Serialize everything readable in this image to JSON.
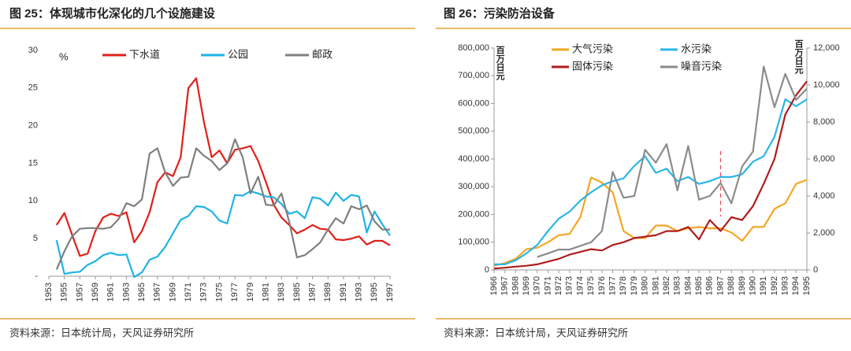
{
  "chart_data": [
    {
      "type": "line",
      "title": "图 25：体现城市化深化的几个设施建设",
      "source": "资料来源：日本统计局，天风证券研究所",
      "y_label": "%",
      "x": [
        1954,
        1955,
        1956,
        1957,
        1958,
        1959,
        1960,
        1961,
        1962,
        1963,
        1964,
        1965,
        1966,
        1967,
        1968,
        1969,
        1970,
        1971,
        1972,
        1973,
        1974,
        1975,
        1976,
        1977,
        1978,
        1979,
        1980,
        1981,
        1982,
        1983,
        1984,
        1985,
        1986,
        1987,
        1988,
        1989,
        1990,
        1991,
        1992,
        1993,
        1994,
        1995,
        1996,
        1997
      ],
      "series": [
        {
          "name": "下水道",
          "color": "#e0201b",
          "values": [
            6.8,
            8.4,
            5.5,
            2.7,
            3.0,
            6.0,
            7.8,
            8.3,
            8.0,
            8.5,
            4.5,
            6.0,
            8.5,
            12.5,
            13.8,
            13.3,
            15.8,
            25.0,
            26.3,
            20.5,
            15.8,
            16.7,
            15.0,
            16.8,
            17.0,
            17.3,
            15.3,
            12.5,
            9.5,
            7.8,
            6.8,
            5.7,
            6.2,
            6.8,
            6.3,
            6.2,
            4.9,
            4.8,
            5.0,
            5.3,
            4.2,
            4.7,
            4.7,
            4.1
          ]
        },
        {
          "name": "公园",
          "color": "#1fb3e6",
          "values": [
            4.8,
            0.3,
            0.5,
            0.6,
            1.5,
            2.0,
            2.8,
            3.1,
            2.8,
            2.9,
            -0.1,
            0.5,
            2.2,
            2.6,
            3.9,
            5.7,
            7.5,
            8.0,
            9.3,
            9.2,
            8.6,
            7.4,
            7.0,
            10.8,
            10.7,
            11.3,
            11.0,
            10.6,
            10.5,
            9.6,
            8.3,
            8.6,
            7.7,
            10.5,
            10.3,
            9.4,
            11.1,
            10.0,
            10.8,
            10.6,
            5.8,
            8.6,
            6.9,
            5.4
          ]
        },
        {
          "name": "邮政",
          "color": "#7f7f7f",
          "values": [
            0.9,
            3.3,
            5.3,
            6.3,
            6.4,
            6.4,
            6.3,
            6.5,
            7.6,
            9.7,
            9.3,
            10.2,
            16.3,
            17.0,
            13.8,
            12.0,
            13.1,
            13.2,
            17.0,
            16.0,
            15.3,
            14.1,
            15.0,
            18.2,
            15.8,
            11.0,
            13.2,
            9.5,
            9.4,
            11.0,
            7.2,
            2.5,
            2.8,
            3.6,
            4.5,
            6.2,
            7.7,
            7.0,
            9.3,
            8.9,
            9.4,
            7.3,
            6.2,
            6.2
          ]
        }
      ],
      "xlim": [
        1953,
        1997
      ],
      "xticks": [
        1953,
        1955,
        1957,
        1959,
        1961,
        1963,
        1965,
        1967,
        1969,
        1971,
        1973,
        1975,
        1977,
        1979,
        1981,
        1983,
        1985,
        1987,
        1989,
        1991,
        1993,
        1995,
        1997
      ],
      "ylim": [
        0,
        30
      ],
      "yticks": [
        {
          "value": 0,
          "label": "-"
        },
        5,
        10,
        15,
        20,
        25,
        30
      ],
      "grid": false
    },
    {
      "type": "line",
      "title": "图 26：污染防治设备",
      "source": "资料来源：日本统计局，天风证券研究所",
      "y_label": "百万日元",
      "y2_label": "百万日元",
      "x": [
        1966,
        1967,
        1968,
        1969,
        1970,
        1971,
        1972,
        1973,
        1974,
        1975,
        1976,
        1977,
        1978,
        1979,
        1980,
        1981,
        1982,
        1983,
        1984,
        1985,
        1986,
        1987,
        1988,
        1989,
        1990,
        1991,
        1992,
        1993,
        1994,
        1995
      ],
      "series": [
        {
          "name": "大气污染",
          "color": "#f5a623",
          "values": [
            15000,
            25000,
            40000,
            75000,
            80000,
            100000,
            125000,
            130000,
            190000,
            333000,
            315000,
            280000,
            140000,
            115000,
            115000,
            160000,
            160000,
            140000,
            150000,
            155000,
            150000,
            150000,
            135000,
            105000,
            155000,
            155000,
            220000,
            240000,
            310000,
            325000
          ]
        },
        {
          "name": "水污染",
          "color": "#29b6e8",
          "values": [
            20000,
            20000,
            35000,
            60000,
            90000,
            140000,
            185000,
            210000,
            250000,
            280000,
            305000,
            320000,
            330000,
            375000,
            410000,
            350000,
            365000,
            320000,
            335000,
            310000,
            320000,
            335000,
            335000,
            345000,
            390000,
            410000,
            480000,
            615000,
            590000,
            615000
          ]
        },
        {
          "name": "固体污染",
          "color": "#b01c1c",
          "values": [
            5000,
            8000,
            12000,
            15000,
            20000,
            30000,
            40000,
            55000,
            65000,
            75000,
            70000,
            90000,
            100000,
            115000,
            120000,
            125000,
            140000,
            140000,
            155000,
            110000,
            180000,
            140000,
            190000,
            180000,
            230000,
            310000,
            400000,
            560000,
            630000,
            680000
          ]
        },
        {
          "name": "噪音污染",
          "color": "#8c8c8c",
          "axis": "y2",
          "values": [
            null,
            null,
            null,
            null,
            700,
            900,
            1100,
            1100,
            1300,
            1500,
            2100,
            5300,
            3900,
            4000,
            6500,
            5800,
            6800,
            4300,
            6700,
            3800,
            4000,
            4700,
            3600,
            5600,
            6400,
            11000,
            8800,
            10600,
            9200,
            9800
          ]
        }
      ],
      "xlim": [
        1966,
        1995
      ],
      "xticks": [
        1966,
        1967,
        1968,
        1969,
        1970,
        1971,
        1972,
        1973,
        1974,
        1975,
        1976,
        1977,
        1978,
        1979,
        1980,
        1981,
        1982,
        1983,
        1984,
        1985,
        1986,
        1987,
        1988,
        1989,
        1990,
        1991,
        1992,
        1993,
        1994,
        1995
      ],
      "ylim": [
        0,
        800000
      ],
      "yticks": [
        0,
        {
          "value": 100000,
          "label": "100,000"
        },
        {
          "value": 200000,
          "label": "200,000"
        },
        {
          "value": 300000,
          "label": "300,000"
        },
        {
          "value": 400000,
          "label": "400,000"
        },
        {
          "value": 500000,
          "label": "500,000"
        },
        {
          "value": 600000,
          "label": "600,000"
        },
        {
          "value": 700000,
          "label": "700,000"
        },
        {
          "value": 800000,
          "label": "800,000"
        }
      ],
      "y2lim": [
        0,
        12000
      ],
      "y2ticks": [
        0,
        {
          "value": 2000,
          "label": "2,000"
        },
        {
          "value": 4000,
          "label": "4,000"
        },
        {
          "value": 6000,
          "label": "6,000"
        },
        {
          "value": 8000,
          "label": "8,000"
        },
        {
          "value": 10000,
          "label": "10,000"
        },
        {
          "value": 12000,
          "label": "12,000"
        }
      ],
      "grid": false
    }
  ]
}
